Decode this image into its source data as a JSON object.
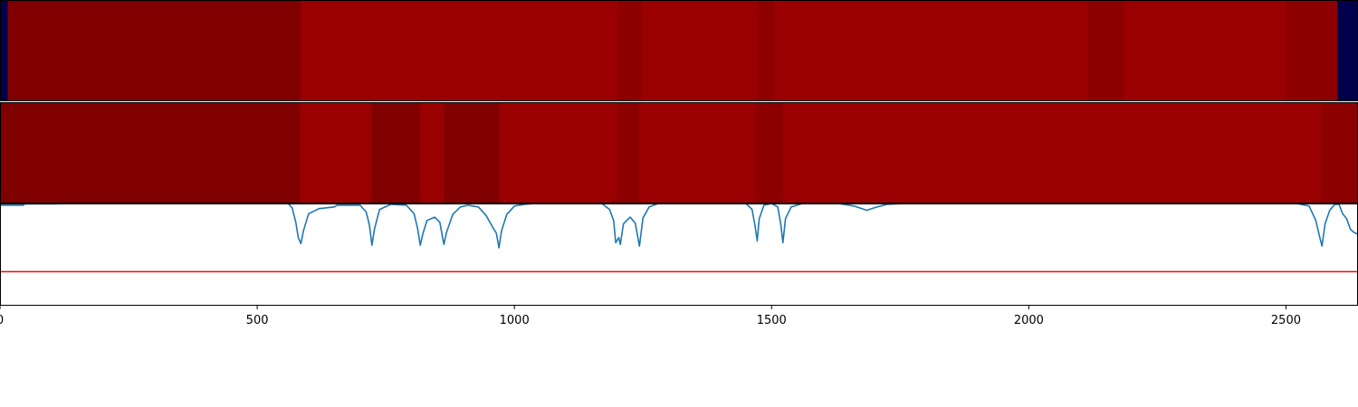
{
  "chart_data": [
    {
      "type": "heatmap",
      "colormap": "seismic",
      "xlim": [
        0,
        2640
      ],
      "segments": [
        {
          "x0": 0,
          "x1": 15,
          "color": "#00004c"
        },
        {
          "x0": 15,
          "x1": 585,
          "color": "#800000"
        },
        {
          "x0": 585,
          "x1": 1200,
          "color": "#9b0000"
        },
        {
          "x0": 1200,
          "x1": 1248,
          "color": "#8d0000"
        },
        {
          "x0": 1248,
          "x1": 1472,
          "color": "#9b0000"
        },
        {
          "x0": 1472,
          "x1": 1505,
          "color": "#8d0000"
        },
        {
          "x0": 1505,
          "x1": 2115,
          "color": "#9b0000"
        },
        {
          "x0": 2115,
          "x1": 2185,
          "color": "#8d0000"
        },
        {
          "x0": 2185,
          "x1": 2500,
          "color": "#9b0000"
        },
        {
          "x0": 2500,
          "x1": 2600,
          "color": "#8d0000"
        },
        {
          "x0": 2600,
          "x1": 2640,
          "color": "#00004c"
        }
      ]
    },
    {
      "type": "heatmap",
      "colormap": "seismic",
      "xlim": [
        0,
        2640
      ],
      "segments": [
        {
          "x0": 0,
          "x1": 583,
          "color": "#800000"
        },
        {
          "x0": 583,
          "x1": 723,
          "color": "#9b0000"
        },
        {
          "x0": 723,
          "x1": 817,
          "color": "#800000"
        },
        {
          "x0": 817,
          "x1": 863,
          "color": "#9b0000"
        },
        {
          "x0": 863,
          "x1": 970,
          "color": "#800000"
        },
        {
          "x0": 970,
          "x1": 1200,
          "color": "#9b0000"
        },
        {
          "x0": 1200,
          "x1": 1243,
          "color": "#8d0000"
        },
        {
          "x0": 1243,
          "x1": 1470,
          "color": "#9b0000"
        },
        {
          "x0": 1470,
          "x1": 1522,
          "color": "#8d0000"
        },
        {
          "x0": 1522,
          "x1": 2570,
          "color": "#9b0000"
        },
        {
          "x0": 2570,
          "x1": 2640,
          "color": "#8d0000"
        }
      ]
    },
    {
      "type": "line",
      "xlim": [
        0,
        2640
      ],
      "ylim": [
        -0.2,
        1.0
      ],
      "threshold": {
        "y": 0.2,
        "color": "#ff0000"
      },
      "series": [
        {
          "color": "#1f77b4",
          "points": [
            [
              0,
              0.98
            ],
            [
              45,
              0.98
            ],
            [
              48,
              0.995
            ],
            [
              100,
              0.995
            ],
            [
              140,
              1.0
            ],
            [
              560,
              1.0
            ],
            [
              568,
              0.95
            ],
            [
              575,
              0.78
            ],
            [
              580,
              0.6
            ],
            [
              585,
              0.53
            ],
            [
              590,
              0.68
            ],
            [
              600,
              0.88
            ],
            [
              620,
              0.94
            ],
            [
              650,
              0.96
            ],
            [
              655,
              0.98
            ],
            [
              700,
              0.98
            ],
            [
              712,
              0.9
            ],
            [
              718,
              0.75
            ],
            [
              723,
              0.51
            ],
            [
              728,
              0.7
            ],
            [
              738,
              0.93
            ],
            [
              760,
              0.99
            ],
            [
              790,
              0.98
            ],
            [
              805,
              0.88
            ],
            [
              812,
              0.7
            ],
            [
              817,
              0.51
            ],
            [
              822,
              0.64
            ],
            [
              830,
              0.8
            ],
            [
              845,
              0.84
            ],
            [
              855,
              0.78
            ],
            [
              863,
              0.52
            ],
            [
              868,
              0.66
            ],
            [
              880,
              0.87
            ],
            [
              895,
              0.96
            ],
            [
              910,
              0.98
            ],
            [
              930,
              0.96
            ],
            [
              945,
              0.86
            ],
            [
              958,
              0.72
            ],
            [
              965,
              0.65
            ],
            [
              970,
              0.48
            ],
            [
              975,
              0.68
            ],
            [
              985,
              0.87
            ],
            [
              1000,
              0.97
            ],
            [
              1020,
              0.99
            ],
            [
              1040,
              1.0
            ],
            [
              1170,
              1.0
            ],
            [
              1185,
              0.93
            ],
            [
              1193,
              0.8
            ],
            [
              1197,
              0.54
            ],
            [
              1200,
              0.57
            ],
            [
              1203,
              0.6
            ],
            [
              1206,
              0.52
            ],
            [
              1212,
              0.76
            ],
            [
              1225,
              0.84
            ],
            [
              1235,
              0.77
            ],
            [
              1243,
              0.5
            ],
            [
              1250,
              0.83
            ],
            [
              1262,
              0.96
            ],
            [
              1280,
              1.0
            ],
            [
              1450,
              1.0
            ],
            [
              1462,
              0.93
            ],
            [
              1468,
              0.73
            ],
            [
              1472,
              0.56
            ],
            [
              1476,
              0.82
            ],
            [
              1485,
              0.98
            ],
            [
              1500,
              1.0
            ],
            [
              1512,
              0.96
            ],
            [
              1518,
              0.75
            ],
            [
              1522,
              0.54
            ],
            [
              1527,
              0.82
            ],
            [
              1538,
              0.96
            ],
            [
              1560,
              1.0
            ],
            [
              1630,
              1.0
            ],
            [
              1660,
              0.97
            ],
            [
              1685,
              0.92
            ],
            [
              1705,
              0.96
            ],
            [
              1725,
              0.99
            ],
            [
              1760,
              1.0
            ],
            [
              2520,
              1.0
            ],
            [
              2545,
              0.97
            ],
            [
              2558,
              0.8
            ],
            [
              2565,
              0.62
            ],
            [
              2570,
              0.5
            ],
            [
              2576,
              0.76
            ],
            [
              2585,
              0.92
            ],
            [
              2595,
              0.99
            ],
            [
              2603,
              0.99
            ],
            [
              2610,
              0.88
            ],
            [
              2618,
              0.82
            ],
            [
              2625,
              0.7
            ],
            [
              2632,
              0.66
            ],
            [
              2640,
              0.64
            ]
          ]
        }
      ],
      "xticks": [
        {
          "value": 0,
          "label": "0"
        },
        {
          "value": 500,
          "label": "500"
        },
        {
          "value": 1000,
          "label": "1000"
        },
        {
          "value": 1500,
          "label": "1500"
        },
        {
          "value": 2000,
          "label": "2000"
        },
        {
          "value": 2500,
          "label": "2500"
        }
      ]
    }
  ]
}
